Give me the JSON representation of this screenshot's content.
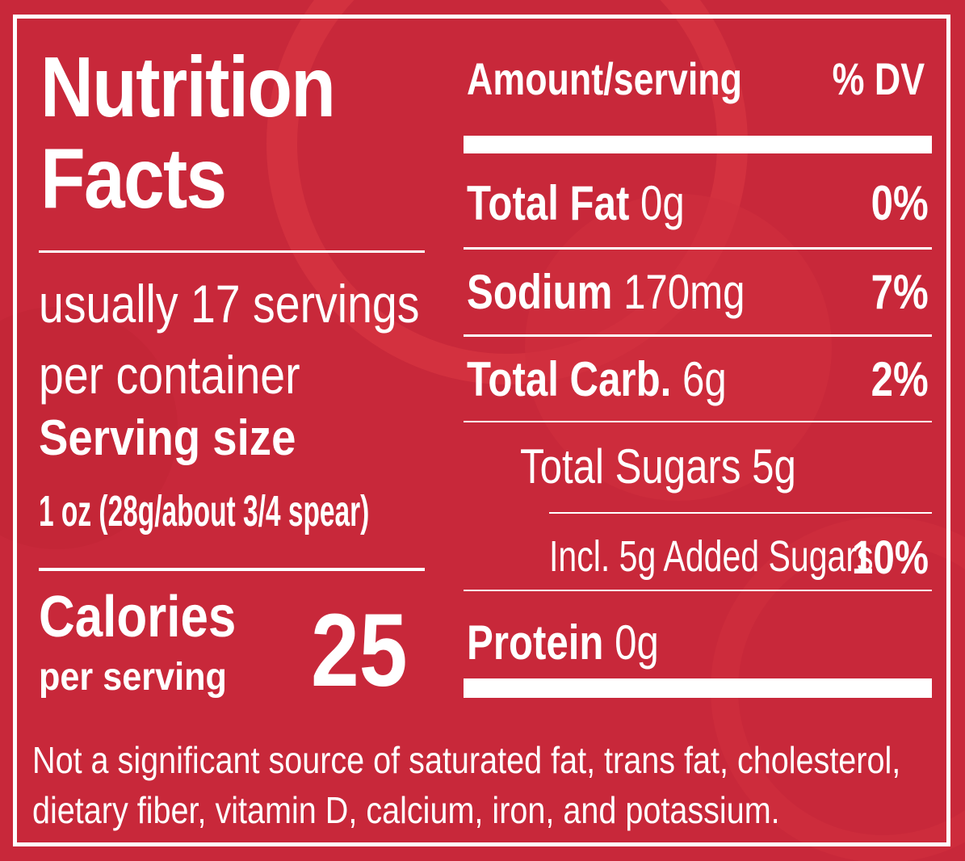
{
  "colors": {
    "background": "#c8283a",
    "text": "#ffffff"
  },
  "label": {
    "title_line1": "Nutrition",
    "title_line2": "Facts",
    "servings_line1": "usually 17 servings",
    "servings_line2": "per container",
    "serving_size_label": "Serving size",
    "serving_size_value": "1 oz (28g/about 3/4 spear)",
    "calories_label": "Calories",
    "calories_sub": "per serving",
    "calories_value": "25",
    "header_amount": "Amount/serving",
    "header_dv": "% DV",
    "nutrients": [
      {
        "name": "Total Fat",
        "amount": "0g",
        "dv": "0%"
      },
      {
        "name": "Sodium",
        "amount": "170mg",
        "dv": "7%"
      },
      {
        "name": "Total Carb.",
        "amount": "6g",
        "dv": "2%"
      },
      {
        "name": "",
        "amount": "Total Sugars 5g",
        "dv": ""
      },
      {
        "name": "",
        "amount": "Incl. 5g Added Sugars",
        "dv": "10%"
      },
      {
        "name": "Protein",
        "amount": "0g",
        "dv": ""
      }
    ],
    "footnote_line1": "Not a significant source of saturated fat, trans fat, cholesterol,",
    "footnote_line2": "dietary fiber, vitamin D, calcium, iron, and potassium."
  }
}
